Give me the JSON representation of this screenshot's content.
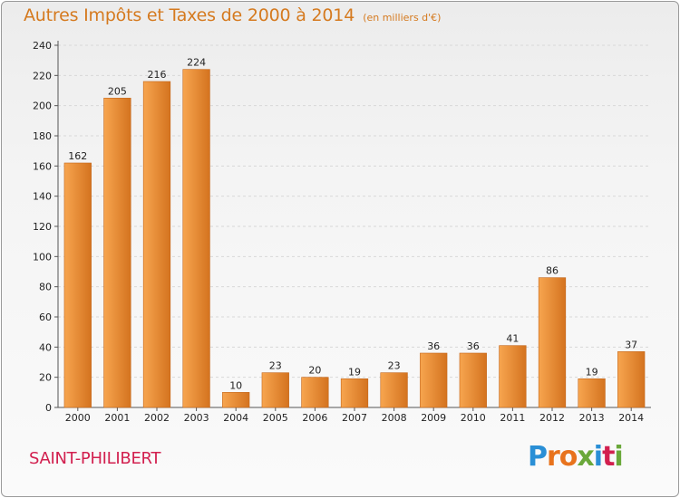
{
  "header": {
    "title": "Autres Impôts et Taxes de 2000 à 2014",
    "subtitle": "(en milliers d'€)"
  },
  "footer": {
    "commune": "SAINT-PHILIBERT",
    "logo_letters": [
      "P",
      "r",
      "o",
      "x",
      "i",
      "t",
      "i"
    ],
    "logo_colors": [
      "#2a8fd6",
      "#e8731d",
      "#e8731d",
      "#6aa83a",
      "#2a8fd6",
      "#d2204f",
      "#6aa83a"
    ]
  },
  "colors": {
    "bar_light": "#f7a54f",
    "bar_dark": "#d4731f",
    "bar_edge": "#c4661a",
    "grid": "#d8d8d8"
  },
  "chart_data": {
    "type": "bar",
    "categories": [
      "2000",
      "2001",
      "2002",
      "2003",
      "2004",
      "2005",
      "2006",
      "2007",
      "2008",
      "2009",
      "2010",
      "2011",
      "2012",
      "2013",
      "2014"
    ],
    "values": [
      162,
      205,
      216,
      224,
      10,
      23,
      20,
      19,
      23,
      36,
      36,
      41,
      86,
      19,
      37
    ],
    "title": "Autres Impôts et Taxes de 2000 à 2014",
    "subtitle": "(en milliers d'€)",
    "ylim": [
      0,
      240
    ],
    "yticks": [
      0,
      20,
      40,
      60,
      80,
      100,
      120,
      140,
      160,
      180,
      200,
      220,
      240
    ],
    "grid": true,
    "legend": "none"
  }
}
